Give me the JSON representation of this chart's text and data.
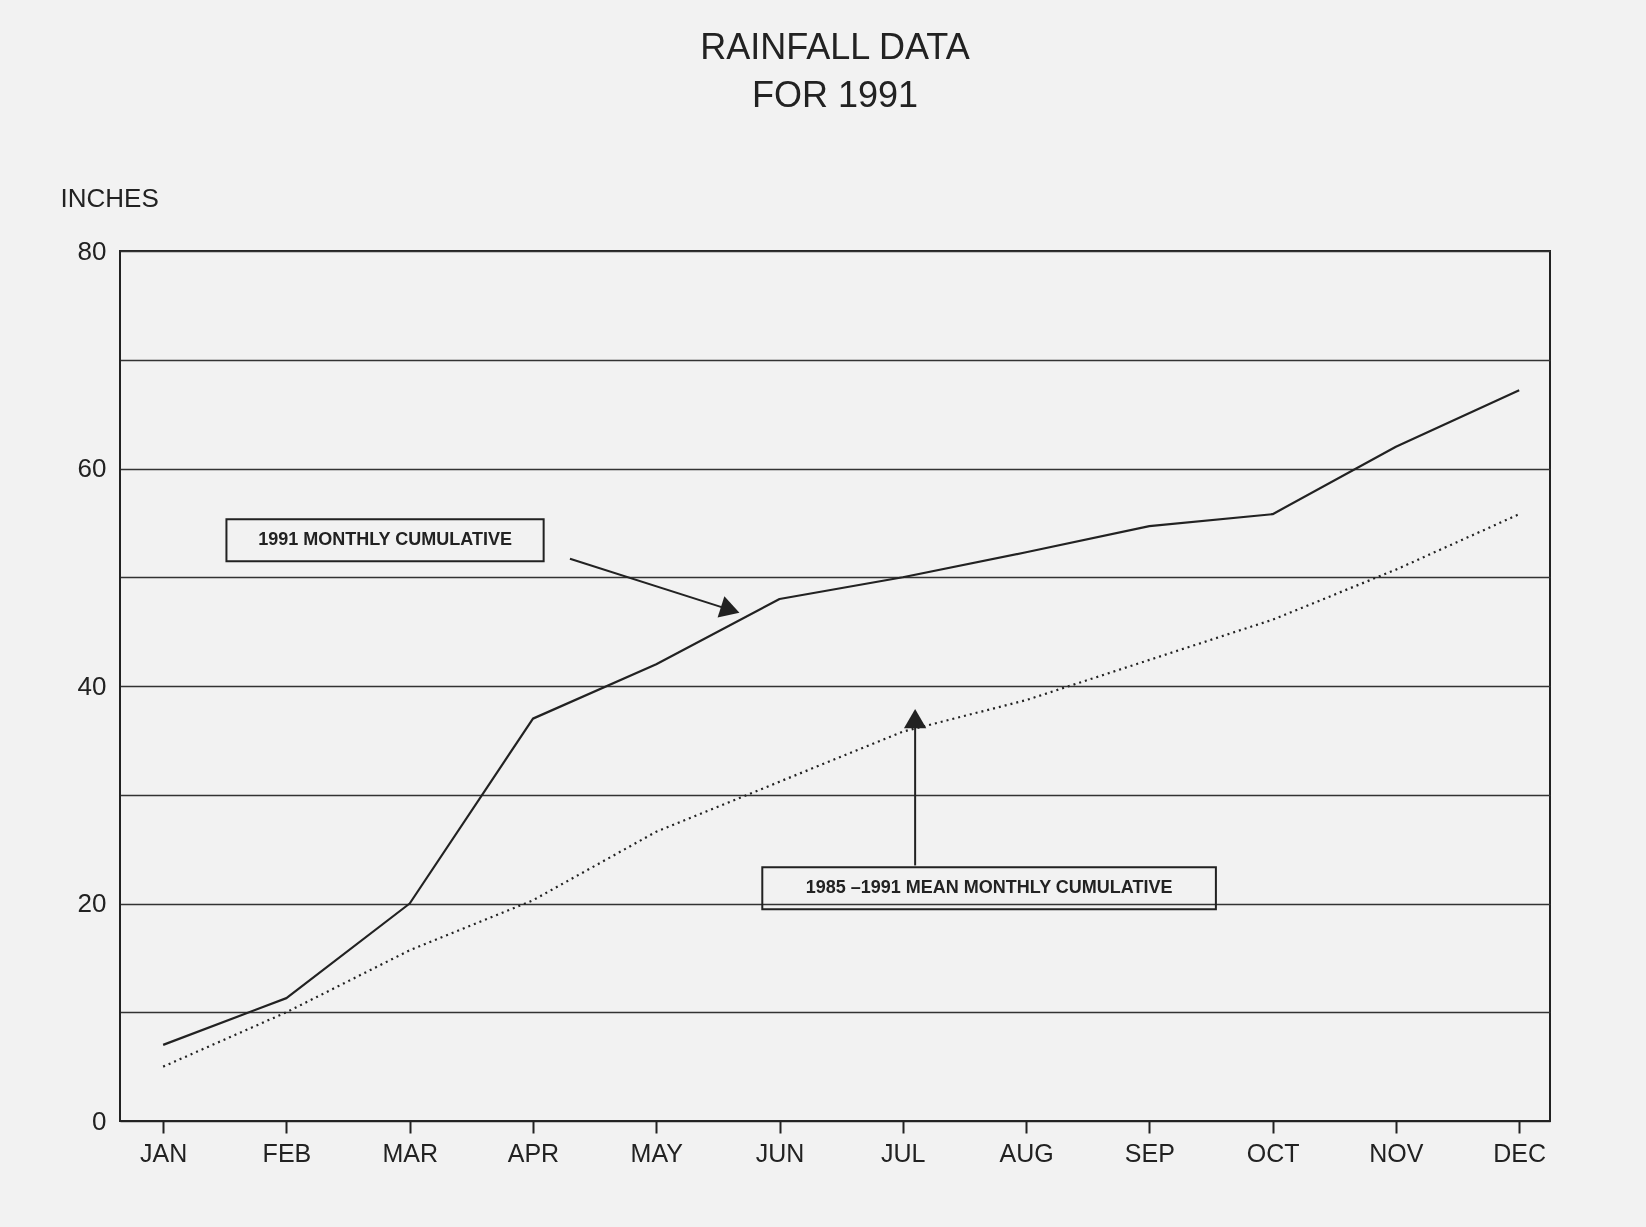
{
  "chart_data": {
    "type": "line",
    "title": "RAINFALL DATA FOR 1991",
    "ylabel": "INCHES",
    "categories": [
      "JAN",
      "FEB",
      "MAR",
      "APR",
      "MAY",
      "JUN",
      "JUL",
      "AUG",
      "SEP",
      "OCT",
      "NOV",
      "DEC"
    ],
    "series": [
      {
        "color": "#222222",
        "line_style": "solid",
        "values": [
          7,
          11.3,
          20,
          37,
          42,
          48,
          50,
          52.3,
          54.7,
          55.8,
          62,
          67.2
        ]
      },
      {
        "color": "#222222",
        "line_style": "dotted",
        "values": [
          5,
          10,
          15.7,
          20.3,
          26.6,
          31.2,
          35.8,
          38.7,
          42.4,
          46.1,
          50.7,
          55.8
        ]
      }
    ],
    "ylim": [
      0,
      80
    ],
    "yticks": [
      0,
      {
        "value": 10,
        "label": null
      },
      20,
      {
        "value": 30,
        "label": null
      },
      40,
      {
        "value": 50,
        "label": null
      },
      60,
      {
        "value": 70,
        "label": null
      },
      80
    ],
    "grid": "y",
    "marker": "none",
    "annotations": [
      "1991 MONTHLY CUMULATIVE",
      "1985 –1991 MEAN MONTHLY CUMULATIVE"
    ]
  }
}
